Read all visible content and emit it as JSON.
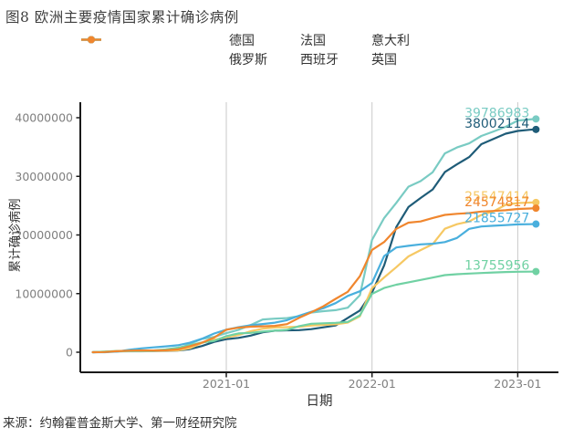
{
  "title": "图8 欧洲主要疫情国家累计确诊病例",
  "source": "来源：约翰霍普金斯大学、第一财经研究院",
  "chart_data": {
    "type": "line",
    "title": "图8 欧洲主要疫情国家累计确诊病例",
    "xlabel": "日期",
    "ylabel": "累计确诊病例",
    "legend_position": "top",
    "grid": "vertical-year-gridlines-only",
    "grid_color": "#c9c9c9",
    "axis_color": "#1a1a1a",
    "tick_text_color": "#7f7f7f",
    "ylim": [
      0,
      40000000
    ],
    "yticks": [
      {
        "v": 0,
        "label": "0"
      },
      {
        "v": 10,
        "label": "10000000"
      },
      {
        "v": 20,
        "label": "20000000"
      },
      {
        "v": 30,
        "label": "30000000"
      },
      {
        "v": 40,
        "label": "40000000"
      }
    ],
    "xticks": [
      {
        "m": 12,
        "label": "2021-01"
      },
      {
        "m": 24,
        "label": "2022-01"
      },
      {
        "m": 36,
        "label": "2023-01"
      }
    ],
    "x_unit": "months since 2020-01",
    "values_unit": "million cases",
    "x": [
      1,
      2,
      3,
      4,
      5,
      6,
      7,
      8,
      9,
      10,
      11,
      12,
      13,
      14,
      15,
      16,
      17,
      18,
      19,
      20,
      21,
      22,
      23,
      24,
      25,
      26,
      27,
      28,
      29,
      30,
      31,
      32,
      33,
      34,
      35,
      36,
      37,
      37.5
    ],
    "series": [
      {
        "key": "germany",
        "name": "德国",
        "color": "#1f5c78",
        "end_label": "38002114",
        "values": [
          0.0,
          0.07,
          0.16,
          0.18,
          0.19,
          0.21,
          0.24,
          0.29,
          0.53,
          1.06,
          1.76,
          2.22,
          2.44,
          2.84,
          3.4,
          3.68,
          3.73,
          3.77,
          3.93,
          4.25,
          4.56,
          5.85,
          7.11,
          10.19,
          14.81,
          21.36,
          24.77,
          26.31,
          27.77,
          30.72,
          32.05,
          33.29,
          35.49,
          36.38,
          37.27,
          37.75,
          37.95,
          38.0
        ]
      },
      {
        "key": "france",
        "name": "法国",
        "color": "#79cbc3",
        "end_label": "39786983",
        "values": [
          0.0,
          0.05,
          0.13,
          0.15,
          0.16,
          0.19,
          0.28,
          0.55,
          1.41,
          2.27,
          2.62,
          3.25,
          3.82,
          4.64,
          5.59,
          5.72,
          5.82,
          6.17,
          6.77,
          7.01,
          7.17,
          7.59,
          9.72,
          19.16,
          22.9,
          25.48,
          28.23,
          29.19,
          30.71,
          33.92,
          34.92,
          35.63,
          36.89,
          37.65,
          38.45,
          39.52,
          39.7,
          39.79
        ]
      },
      {
        "key": "italy",
        "name": "意大利",
        "color": "#f6c863",
        "end_label": "25547414",
        "values": [
          0.0,
          0.11,
          0.21,
          0.23,
          0.24,
          0.25,
          0.27,
          0.31,
          0.68,
          1.6,
          2.11,
          2.54,
          2.93,
          3.58,
          4.01,
          4.22,
          4.28,
          4.35,
          4.55,
          4.67,
          4.77,
          5.06,
          6.13,
          10.92,
          12.76,
          14.5,
          16.35,
          17.42,
          18.43,
          21.06,
          21.83,
          22.31,
          23.42,
          24.03,
          25.14,
          25.45,
          25.53,
          25.55
        ]
      },
      {
        "key": "russia",
        "name": "俄罗斯",
        "color": "#49afdd",
        "end_label": "21855727",
        "values": [
          0.0,
          0.0,
          0.11,
          0.41,
          0.65,
          0.83,
          0.99,
          1.19,
          1.62,
          2.3,
          3.19,
          3.85,
          4.26,
          4.59,
          4.81,
          5.04,
          5.47,
          6.22,
          6.9,
          7.51,
          8.38,
          9.6,
          10.4,
          11.83,
          16.41,
          17.86,
          18.15,
          18.39,
          18.5,
          18.79,
          19.49,
          21.05,
          21.45,
          21.57,
          21.68,
          21.8,
          21.84,
          21.86
        ]
      },
      {
        "key": "spain",
        "name": "西班牙",
        "color": "#70d1a3",
        "end_label": "13755956",
        "values": [
          0.0,
          0.1,
          0.21,
          0.24,
          0.25,
          0.29,
          0.46,
          0.77,
          1.19,
          1.66,
          1.93,
          2.74,
          3.2,
          3.3,
          3.51,
          3.68,
          3.82,
          4.45,
          4.86,
          4.94,
          5.01,
          5.16,
          6.29,
          9.96,
          10.95,
          11.51,
          11.92,
          12.33,
          12.73,
          13.15,
          13.31,
          13.41,
          13.51,
          13.6,
          13.68,
          13.73,
          13.75,
          13.76
        ]
      },
      {
        "key": "uk",
        "name": "英国",
        "color": "#f0862e",
        "end_label": "24574817",
        "values": [
          0.0,
          0.03,
          0.17,
          0.27,
          0.31,
          0.3,
          0.33,
          0.48,
          1.03,
          1.63,
          2.49,
          3.84,
          4.19,
          4.36,
          4.42,
          4.5,
          4.8,
          5.86,
          6.81,
          7.84,
          9.1,
          10.3,
          12.97,
          17.45,
          18.8,
          21.04,
          22.1,
          22.3,
          22.89,
          23.42,
          23.61,
          23.74,
          24.0,
          24.1,
          24.22,
          24.43,
          24.52,
          24.57
        ]
      }
    ]
  }
}
